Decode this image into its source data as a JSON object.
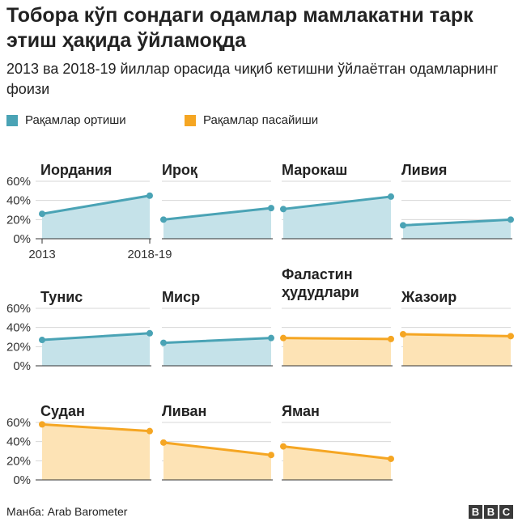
{
  "title": "Тобора кўп сондаги одамлар мамлакатни тарк этиш ҳақида ўйламоқда",
  "subtitle": "2013 ва 2018-19 йиллар орасида чиқиб кетишни ўйлаётган одамларнинг фоизи",
  "legend": {
    "increase_label": "Рақамлар ортиши",
    "decrease_label": "Рақамлар пасайиши"
  },
  "colors": {
    "increase_line": "#4aa3b5",
    "increase_fill": "#c5e2e9",
    "decrease_line": "#f5a623",
    "decrease_fill": "#fde3b5",
    "axis": "#333333",
    "grid": "#d7d7d7"
  },
  "source": "Манба: Arab Barometer",
  "logo_letters": [
    "B",
    "B",
    "C"
  ],
  "chart_data": {
    "type": "area",
    "title": "Тобора кўп сондаги одамлар мамлакатни тарк этиш ҳақида ўйламоқда",
    "x": [
      "2013",
      "2018-19"
    ],
    "ylabel": "%",
    "ylim": [
      0,
      60
    ],
    "yticks": [
      "0%",
      "20%",
      "40%",
      "60%"
    ],
    "grid": true,
    "series": [
      {
        "name": "Иордания",
        "values": [
          26,
          45
        ],
        "trend": "increase"
      },
      {
        "name": "Ироқ",
        "values": [
          20,
          32
        ],
        "trend": "increase"
      },
      {
        "name": "Марокаш",
        "values": [
          31,
          44
        ],
        "trend": "increase"
      },
      {
        "name": "Ливия",
        "values": [
          14,
          20
        ],
        "trend": "increase"
      },
      {
        "name": "Тунис",
        "values": [
          27,
          34
        ],
        "trend": "increase"
      },
      {
        "name": "Миср",
        "values": [
          24,
          29
        ],
        "trend": "increase"
      },
      {
        "name": "Фаластин ҳудудлари",
        "values": [
          29,
          28
        ],
        "trend": "decrease"
      },
      {
        "name": "Жазоир",
        "values": [
          33,
          31
        ],
        "trend": "decrease"
      },
      {
        "name": "Судан",
        "values": [
          58,
          51
        ],
        "trend": "decrease"
      },
      {
        "name": "Ливан",
        "values": [
          39,
          26
        ],
        "trend": "decrease"
      },
      {
        "name": "Яман",
        "values": [
          35,
          22
        ],
        "trend": "decrease"
      }
    ]
  }
}
